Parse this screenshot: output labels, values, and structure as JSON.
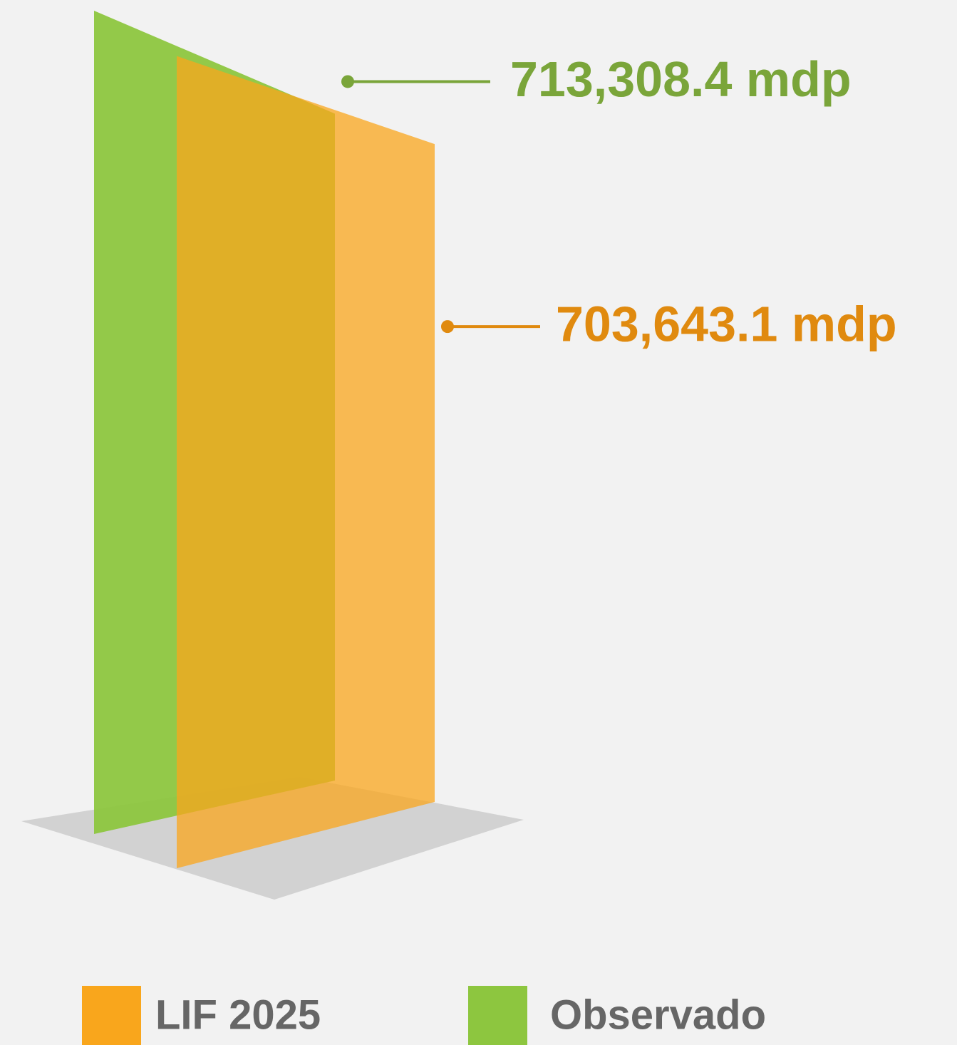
{
  "chart_data": {
    "type": "bar",
    "series": [
      {
        "name": "LIF 2025",
        "color": "#f9a61c",
        "values": [
          703643.1
        ],
        "value_labels": [
          "703,643.1 mdp"
        ]
      },
      {
        "name": "Observado",
        "color": "#8dc63f",
        "values": [
          713308.4
        ],
        "value_labels": [
          "713,308.4 mdp"
        ]
      }
    ]
  }
}
